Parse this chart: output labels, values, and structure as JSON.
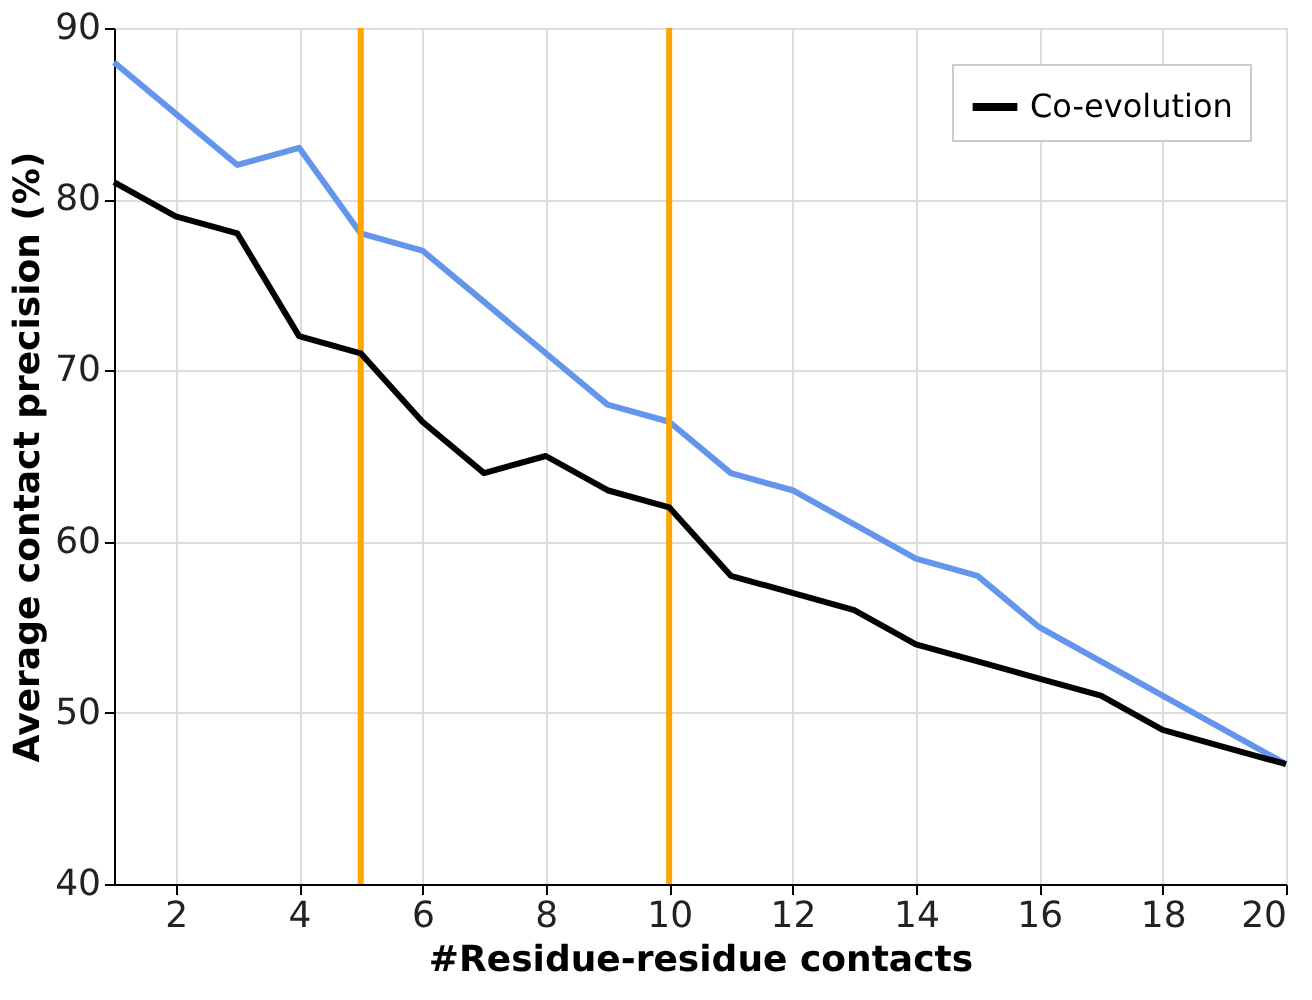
{
  "chart_data": {
    "type": "line",
    "xlabel": "#Residue-residue contacts",
    "ylabel": "Average contact precision (%)",
    "x": [
      1,
      2,
      3,
      4,
      5,
      6,
      7,
      8,
      9,
      10,
      11,
      12,
      13,
      14,
      15,
      16,
      17,
      18,
      19,
      20
    ],
    "series": [
      {
        "color": "#6495ed",
        "values": [
          88,
          85,
          82,
          83,
          78,
          77,
          74,
          71,
          68,
          67,
          64,
          63,
          61,
          59,
          58,
          55,
          53,
          51,
          49,
          47
        ]
      },
      {
        "name": "Co-evolution",
        "color": "#000000",
        "values": [
          81,
          79,
          78,
          72,
          71,
          67,
          64,
          65,
          63,
          62,
          58,
          57,
          56,
          54,
          53,
          52,
          51,
          49,
          48,
          47
        ]
      }
    ],
    "xlim": [
      1,
      20
    ],
    "xticks": [
      2,
      4,
      6,
      8,
      10,
      12,
      14,
      16,
      18,
      20
    ],
    "ylim": [
      40,
      90
    ],
    "yticks": [
      40,
      50,
      60,
      70,
      80,
      90
    ],
    "grid": true,
    "legend": "top right",
    "marker": "none",
    "line_style": "solid",
    "ref_lines": [
      {
        "axis": "x",
        "value": 5,
        "color": "#ffa500"
      },
      {
        "axis": "x",
        "value": 10,
        "color": "#ffa500"
      }
    ]
  }
}
